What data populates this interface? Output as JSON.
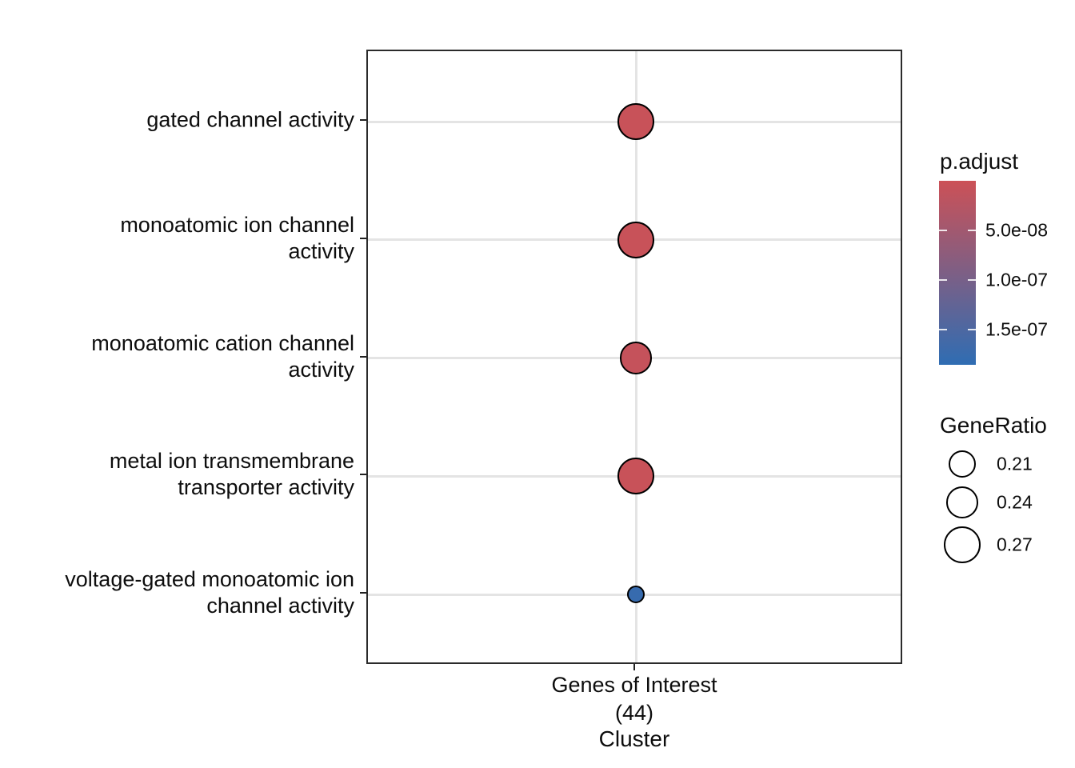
{
  "style": {
    "background": "#ffffff",
    "panel_border_color": "#2b2b2b",
    "grid_color": "#e4e4e4",
    "dot_stroke_color": "#000000",
    "text_color": "#0d0d0d"
  },
  "chart_data": {
    "type": "scatter",
    "subtype": "enrichment-dotplot",
    "title": "",
    "xlabel": "Cluster",
    "ylabel": "",
    "x_tick_label_lines": [
      "Genes of Interest",
      "(44)"
    ],
    "x_category": "Genes of Interest (44)",
    "grid": true,
    "points": [
      {
        "term": "gated channel activity",
        "label_lines": [
          "gated channel activity"
        ],
        "gene_ratio": 0.27,
        "p_adjust": 5e-09
      },
      {
        "term": "monoatomic ion channel activity",
        "label_lines": [
          "monoatomic ion channel",
          "activity"
        ],
        "gene_ratio": 0.27,
        "p_adjust": 5e-09
      },
      {
        "term": "monoatomic cation channel activity",
        "label_lines": [
          "monoatomic cation channel",
          "activity"
        ],
        "gene_ratio": 0.24,
        "p_adjust": 8e-09
      },
      {
        "term": "metal ion transmembrane transporter activity",
        "label_lines": [
          "metal ion transmembrane",
          "transporter activity"
        ],
        "gene_ratio": 0.27,
        "p_adjust": 5e-09
      },
      {
        "term": "voltage-gated monoatomic ion channel activity",
        "label_lines": [
          "voltage-gated monoatomic ion",
          "channel activity"
        ],
        "gene_ratio": 0.16,
        "p_adjust": 1.75e-07
      }
    ],
    "legend_color": {
      "title": "p.adjust",
      "low_color": "#cc5157",
      "high_color": "#2f6db3",
      "domain": [
        0,
        1.85e-07
      ],
      "tick_values": [
        5e-08,
        1e-07,
        1.5e-07
      ],
      "tick_labels": [
        "5.0e-08",
        "1.0e-07",
        "1.5e-07"
      ]
    },
    "legend_size": {
      "title": "GeneRatio",
      "entries": [
        0.21,
        0.24,
        0.27
      ],
      "labels": [
        "0.21",
        "0.24",
        "0.27"
      ]
    }
  }
}
